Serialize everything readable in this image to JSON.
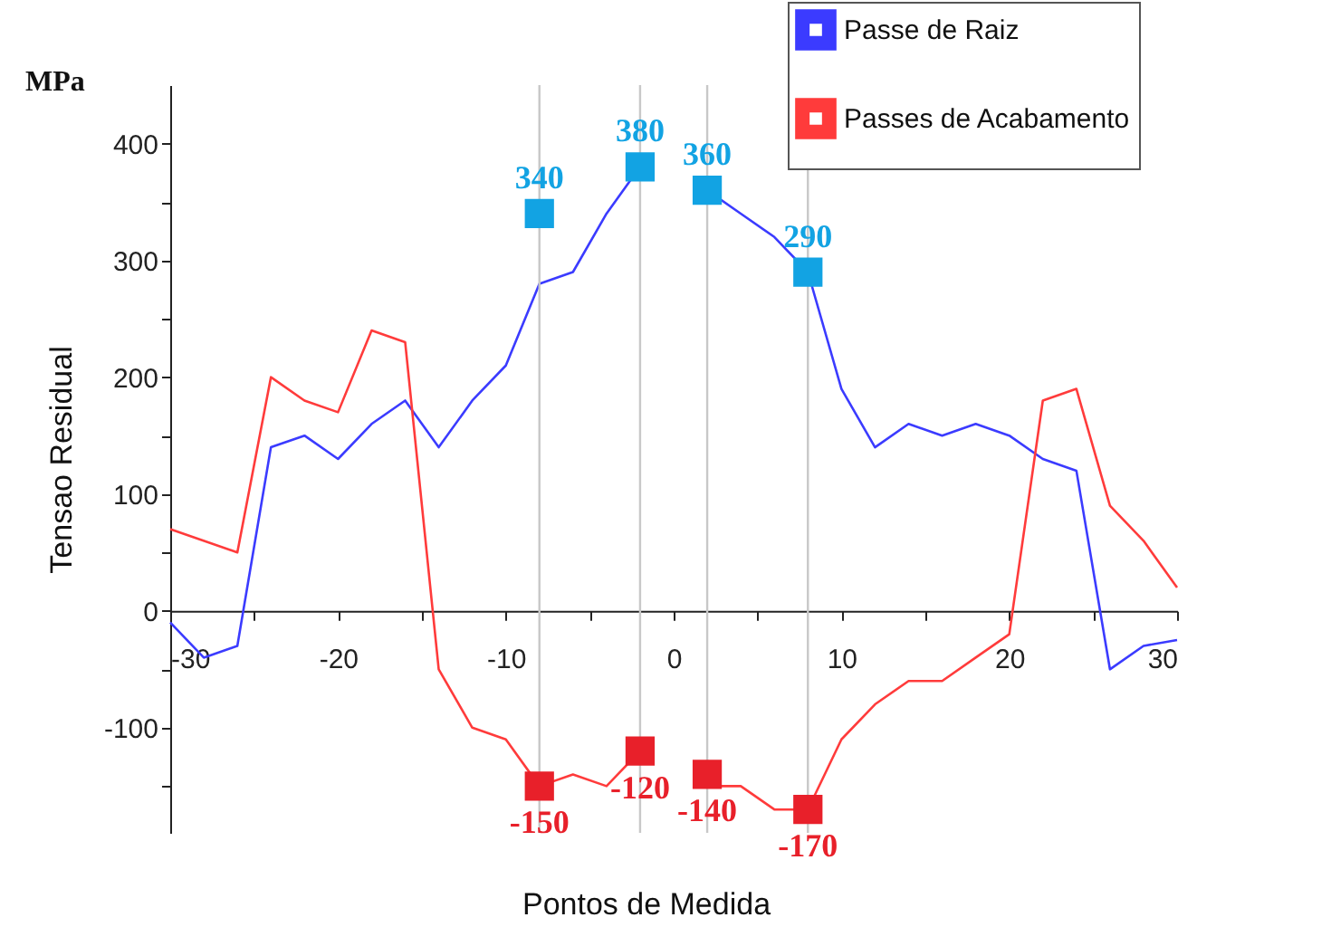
{
  "chart_data": {
    "type": "line",
    "xlabel": "Pontos de Medida",
    "ylabel": "Tensao Residual",
    "annotations": [
      "MPa"
    ],
    "xlim": [
      -30,
      30
    ],
    "ylim": [
      -190,
      450
    ],
    "xticks": [
      -30,
      {
        "value": -25,
        "label": null
      },
      -20,
      {
        "value": -15,
        "label": null
      },
      -10,
      {
        "value": -5,
        "label": null
      },
      0,
      {
        "value": 5,
        "label": null
      },
      10,
      {
        "value": 15,
        "label": null
      },
      20,
      {
        "value": 25,
        "label": null
      },
      30
    ],
    "yticks": [
      {
        "value": -150,
        "label": null
      },
      -100,
      {
        "value": -50,
        "label": null
      },
      0,
      {
        "value": 50,
        "label": null
      },
      100,
      {
        "value": 150,
        "label": null
      },
      200,
      {
        "value": 250,
        "label": null
      },
      300,
      {
        "value": 350,
        "label": null
      },
      400
    ],
    "legend": "top right",
    "grid": false,
    "ref_lines": [
      {
        "axis": "x",
        "value": -8,
        "color": "#c8c8c8"
      },
      {
        "axis": "x",
        "value": -2,
        "color": "#c8c8c8"
      },
      {
        "axis": "x",
        "value": 2,
        "color": "#c8c8c8"
      },
      {
        "axis": "x",
        "value": 8,
        "color": "#c8c8c8"
      }
    ],
    "series": [
      {
        "name": "Passe de Raiz",
        "color": "#3b3bff",
        "marker": "none",
        "x": [
          -30,
          -28,
          -26,
          -24,
          -22,
          -20,
          -18,
          -16,
          -14,
          -12,
          -10,
          -8,
          -6,
          -4,
          -2,
          0,
          2,
          4,
          6,
          8,
          10,
          12,
          14,
          16,
          18,
          20,
          22,
          24,
          26,
          28,
          30
        ],
        "values": [
          -10,
          -40,
          -30,
          140,
          150,
          130,
          160,
          180,
          140,
          180,
          210,
          280,
          290,
          340,
          380,
          null,
          360,
          340,
          320,
          290,
          190,
          140,
          160,
          150,
          160,
          150,
          130,
          120,
          -50,
          -30,
          -25
        ]
      },
      {
        "name": "Passes de Acabamento",
        "color": "#ff3b3b",
        "marker": "none",
        "x": [
          -30,
          -26,
          -24,
          -22,
          -20,
          -18,
          -16,
          -14,
          -12,
          -10,
          -8,
          -6,
          -4,
          -2,
          0,
          2,
          4,
          6,
          8,
          10,
          12,
          14,
          16,
          18,
          20,
          22,
          24,
          26,
          28,
          30
        ],
        "values": [
          70,
          50,
          200,
          180,
          170,
          240,
          230,
          -50,
          -100,
          -110,
          -150,
          -140,
          -150,
          -120,
          null,
          -150,
          -150,
          -170,
          -170,
          -110,
          -80,
          -60,
          -60,
          -40,
          -20,
          180,
          190,
          90,
          60,
          20
        ]
      },
      {
        "type": "scatter",
        "marker": "square",
        "color": "#12a3e3",
        "x": [
          -8,
          -2,
          2,
          8
        ],
        "values": [
          340,
          380,
          360,
          290
        ],
        "value_labels": [
          "340",
          "380",
          "360",
          "290"
        ]
      },
      {
        "type": "scatter",
        "marker": "square",
        "color": "#e8202a",
        "x": [
          -8,
          -2,
          2,
          8
        ],
        "values": [
          -150,
          -120,
          -140,
          -170
        ],
        "value_labels": [
          "-150",
          "-120",
          "-140",
          "-170"
        ]
      }
    ]
  }
}
